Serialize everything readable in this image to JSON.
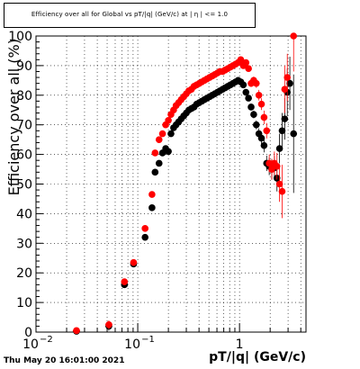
{
  "title": "Efficiency over all for Global vs pT/|q| (GeV/c) at | η | <= 1.0",
  "timestamp": "Thu May 20 16:01:00 2021",
  "chart_data": {
    "type": "scatter",
    "title": "Efficiency over all for Global vs pT/|q| (GeV/c) at | η | <= 1.0",
    "xlabel": "pT/|q| (GeV/c)",
    "ylabel": "Efficiency over all (%)",
    "xscale": "log",
    "xlim": [
      0.01,
      4.5
    ],
    "ylim": [
      0,
      100
    ],
    "grid": true,
    "y_ticks": [
      "0",
      "10",
      "20",
      "30",
      "40",
      "50",
      "60",
      "70",
      "80",
      "90",
      "100"
    ],
    "x_ticks": [
      {
        "value": 0.01,
        "base": "10",
        "exp": "−2"
      },
      {
        "value": 0.1,
        "base": "10",
        "exp": "−1"
      },
      {
        "value": 1,
        "base": "1",
        "exp": ""
      }
    ],
    "colors": {
      "series_black": "#000000",
      "series_red": "#ff0000"
    },
    "series": [
      {
        "color": "#000000",
        "points": [
          [
            0.025,
            0.3,
            0,
            0.01
          ],
          [
            0.052,
            2.0,
            1.5,
            0.01
          ],
          [
            0.074,
            16.0,
            1.0,
            0.006
          ],
          [
            0.091,
            23.0,
            1.0,
            0.006
          ],
          [
            0.118,
            32.0,
            1.0,
            0.006
          ],
          [
            0.138,
            42.0,
            1.0,
            0.006
          ],
          [
            0.148,
            54.0,
            1.0,
            0.006
          ],
          [
            0.162,
            57.0,
            1.0,
            0.006
          ],
          [
            0.175,
            60.5,
            0.8,
            0.006
          ],
          [
            0.188,
            62.0,
            0.8,
            0.006
          ],
          [
            0.2,
            61.0,
            0.8,
            0.006
          ],
          [
            0.212,
            67.0,
            0.8,
            0.006
          ],
          [
            0.225,
            69.0,
            0.6,
            0.006
          ],
          [
            0.238,
            70.0,
            0.6,
            0.006
          ],
          [
            0.252,
            71.0,
            0.6,
            0.006
          ],
          [
            0.267,
            72.0,
            0.6,
            0.006
          ],
          [
            0.283,
            73.0,
            0.5,
            0.006
          ],
          [
            0.3,
            74.0,
            0.5,
            0.006
          ],
          [
            0.318,
            75.0,
            0.5,
            0.006
          ],
          [
            0.337,
            75.5,
            0.5,
            0.006
          ],
          [
            0.357,
            76.0,
            0.5,
            0.006
          ],
          [
            0.379,
            77.0,
            0.5,
            0.006
          ],
          [
            0.402,
            77.5,
            0.5,
            0.006
          ],
          [
            0.426,
            78.0,
            0.5,
            0.006
          ],
          [
            0.452,
            78.5,
            0.5,
            0.006
          ],
          [
            0.479,
            79.0,
            0.5,
            0.006
          ],
          [
            0.508,
            79.5,
            0.5,
            0.006
          ],
          [
            0.539,
            80.0,
            0.5,
            0.006
          ],
          [
            0.572,
            80.5,
            0.5,
            0.006
          ],
          [
            0.606,
            81.0,
            0.5,
            0.006
          ],
          [
            0.643,
            81.5,
            0.5,
            0.006
          ],
          [
            0.682,
            82.0,
            0.5,
            0.006
          ],
          [
            0.723,
            82.5,
            0.5,
            0.006
          ],
          [
            0.767,
            83.0,
            0.5,
            0.006
          ],
          [
            0.813,
            83.5,
            0.5,
            0.006
          ],
          [
            0.862,
            84.0,
            0.5,
            0.006
          ],
          [
            0.914,
            84.5,
            0.6,
            0.006
          ],
          [
            0.969,
            85.0,
            0.6,
            0.006
          ],
          [
            1.028,
            84.5,
            0.7,
            0.006
          ],
          [
            1.09,
            83.5,
            0.8,
            0.006
          ],
          [
            1.156,
            81.0,
            0.9,
            0.006
          ],
          [
            1.226,
            79.0,
            1.0,
            0.006
          ],
          [
            1.3,
            76.0,
            1.2,
            0.006
          ],
          [
            1.379,
            73.5,
            1.3,
            0.006
          ],
          [
            1.462,
            70.0,
            1.5,
            0.006
          ],
          [
            1.55,
            67.0,
            1.8,
            0.006
          ],
          [
            1.643,
            65.5,
            2.0,
            0.006
          ],
          [
            1.742,
            63.0,
            2.3,
            0.006
          ],
          [
            1.847,
            57.0,
            2.6,
            0.006
          ],
          [
            1.958,
            56.0,
            3.0,
            0.006
          ],
          [
            2.076,
            55.0,
            3.5,
            0.006
          ],
          [
            2.2,
            55.5,
            4.0,
            0.006
          ],
          [
            2.333,
            52.0,
            4.5,
            0.006
          ],
          [
            2.473,
            62.0,
            5.0,
            0.006
          ],
          [
            2.622,
            68.0,
            6.0,
            0.006
          ],
          [
            2.78,
            72.0,
            7.0,
            0.006
          ],
          [
            2.947,
            81.0,
            8.0,
            0.006
          ],
          [
            3.124,
            84.0,
            9.0,
            0.006
          ],
          [
            3.4,
            67.0,
            20.0,
            0.006
          ]
        ]
      },
      {
        "color": "#ff0000",
        "points": [
          [
            0.025,
            0.5,
            0,
            0.01
          ],
          [
            0.052,
            2.5,
            1.5,
            0.01
          ],
          [
            0.074,
            17.0,
            1.0,
            0.006
          ],
          [
            0.091,
            23.5,
            1.0,
            0.006
          ],
          [
            0.118,
            35.0,
            1.0,
            0.006
          ],
          [
            0.138,
            46.5,
            1.0,
            0.006
          ],
          [
            0.148,
            60.5,
            1.0,
            0.006
          ],
          [
            0.162,
            65.0,
            1.0,
            0.006
          ],
          [
            0.175,
            67.0,
            0.8,
            0.006
          ],
          [
            0.188,
            70.0,
            0.8,
            0.006
          ],
          [
            0.2,
            71.5,
            0.8,
            0.006
          ],
          [
            0.212,
            73.5,
            0.8,
            0.006
          ],
          [
            0.225,
            75.0,
            0.6,
            0.006
          ],
          [
            0.238,
            76.5,
            0.6,
            0.006
          ],
          [
            0.252,
            77.5,
            0.6,
            0.006
          ],
          [
            0.267,
            78.5,
            0.6,
            0.006
          ],
          [
            0.283,
            79.5,
            0.5,
            0.006
          ],
          [
            0.3,
            80.5,
            0.5,
            0.006
          ],
          [
            0.318,
            81.5,
            0.5,
            0.006
          ],
          [
            0.337,
            82.0,
            0.5,
            0.006
          ],
          [
            0.357,
            83.0,
            0.5,
            0.006
          ],
          [
            0.379,
            83.5,
            0.5,
            0.006
          ],
          [
            0.402,
            84.0,
            0.5,
            0.006
          ],
          [
            0.426,
            84.5,
            0.5,
            0.006
          ],
          [
            0.452,
            85.0,
            0.5,
            0.006
          ],
          [
            0.479,
            85.5,
            0.5,
            0.006
          ],
          [
            0.508,
            86.0,
            0.5,
            0.006
          ],
          [
            0.539,
            86.5,
            0.5,
            0.006
          ],
          [
            0.572,
            87.0,
            0.5,
            0.006
          ],
          [
            0.606,
            87.5,
            0.5,
            0.006
          ],
          [
            0.643,
            88.0,
            0.5,
            0.006
          ],
          [
            0.682,
            88.0,
            0.5,
            0.006
          ],
          [
            0.723,
            88.5,
            0.5,
            0.006
          ],
          [
            0.767,
            89.0,
            0.5,
            0.006
          ],
          [
            0.813,
            89.5,
            0.5,
            0.006
          ],
          [
            0.862,
            90.0,
            0.5,
            0.006
          ],
          [
            0.914,
            90.5,
            0.6,
            0.006
          ],
          [
            0.969,
            91.0,
            0.6,
            0.006
          ],
          [
            1.028,
            92.0,
            0.7,
            0.006
          ],
          [
            1.09,
            90.0,
            0.8,
            0.006
          ],
          [
            1.156,
            91.0,
            0.9,
            0.006
          ],
          [
            1.226,
            89.0,
            1.0,
            0.006
          ],
          [
            1.3,
            84.0,
            1.2,
            0.006
          ],
          [
            1.379,
            85.0,
            1.3,
            0.006
          ],
          [
            1.462,
            84.0,
            1.5,
            0.006
          ],
          [
            1.55,
            80.0,
            1.8,
            0.006
          ],
          [
            1.643,
            77.0,
            2.0,
            0.006
          ],
          [
            1.742,
            72.5,
            2.3,
            0.006
          ],
          [
            1.847,
            68.0,
            2.6,
            0.006
          ],
          [
            1.958,
            57.0,
            3.0,
            0.006
          ],
          [
            2.076,
            55.0,
            3.5,
            0.006
          ],
          [
            2.2,
            57.0,
            4.0,
            0.006
          ],
          [
            2.333,
            56.0,
            4.5,
            0.006
          ],
          [
            2.473,
            50.0,
            6.0,
            0.006
          ],
          [
            2.622,
            47.5,
            9.0,
            0.006
          ],
          [
            2.78,
            82.0,
            8.0,
            0.006
          ],
          [
            2.947,
            86.0,
            8.0,
            0.006
          ],
          [
            3.4,
            100.0,
            12.0,
            0.006
          ]
        ]
      }
    ]
  }
}
